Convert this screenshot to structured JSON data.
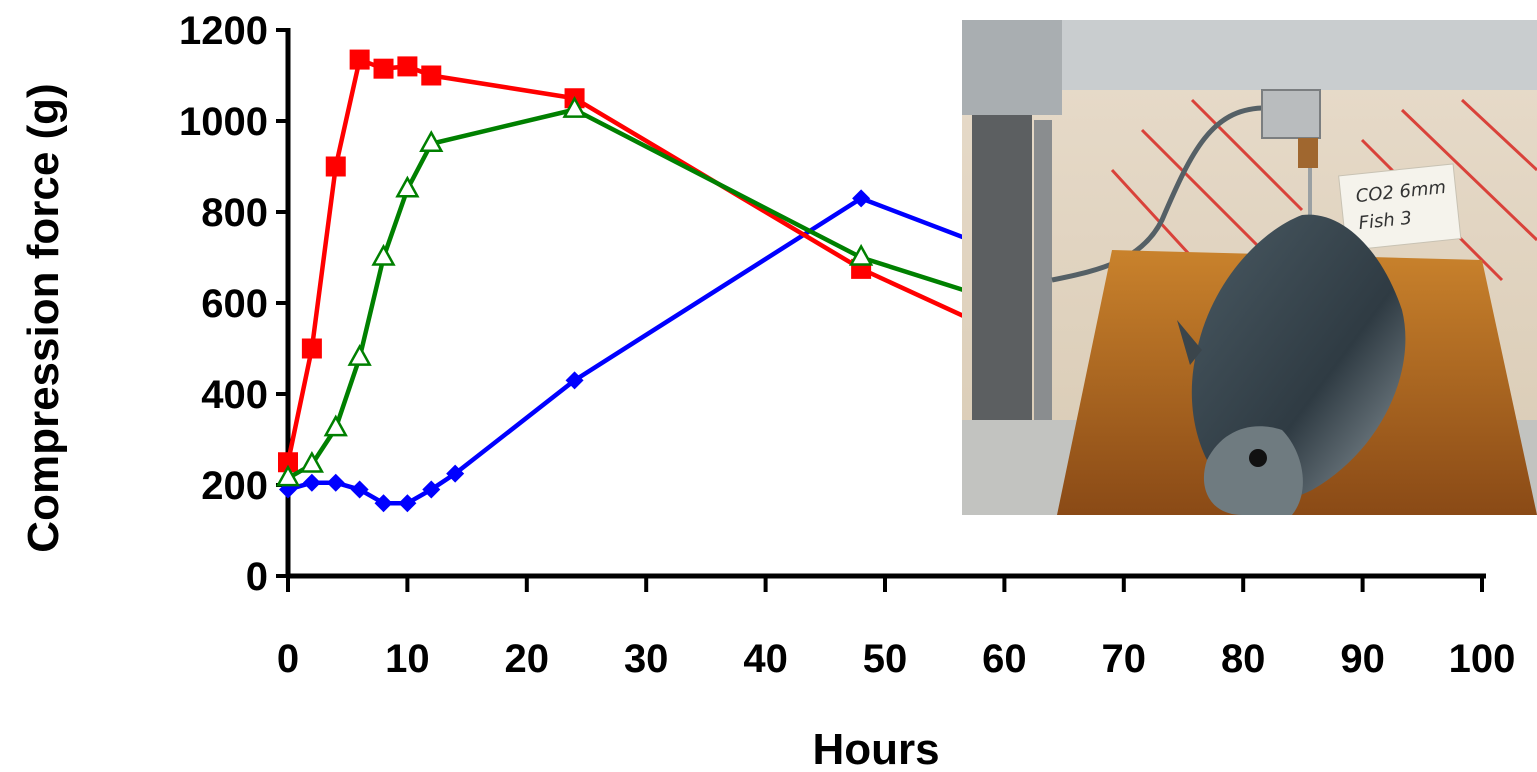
{
  "chart_data": {
    "type": "line",
    "title": "",
    "xlabel": "Hours",
    "ylabel": "Compression force (g)",
    "xlim": [
      0,
      100
    ],
    "ylim": [
      0,
      1200
    ],
    "xticks": [
      0,
      10,
      20,
      30,
      40,
      50,
      60,
      70,
      80,
      90,
      100
    ],
    "yticks": [
      0,
      200,
      400,
      600,
      800,
      1000,
      1200
    ],
    "grid": false,
    "legend": "none",
    "series": [
      {
        "color": "#0000ff",
        "marker": "diamond",
        "x": [
          0,
          2,
          4,
          6,
          8,
          10,
          12,
          14,
          24,
          48,
          60
        ],
        "y": [
          190,
          205,
          205,
          190,
          160,
          160,
          190,
          225,
          430,
          830,
          710
        ]
      },
      {
        "color": "#ff0000",
        "marker": "square",
        "x": [
          0,
          2,
          4,
          6,
          8,
          10,
          12,
          24,
          48,
          60
        ],
        "y": [
          250,
          500,
          900,
          1135,
          1115,
          1120,
          1100,
          1050,
          675,
          530
        ]
      },
      {
        "color": "#008000",
        "marker": "triangle-open",
        "x": [
          0,
          2,
          4,
          6,
          8,
          10,
          12,
          24,
          48,
          60
        ],
        "y": [
          215,
          245,
          325,
          480,
          700,
          850,
          950,
          1025,
          700,
          600
        ]
      }
    ]
  },
  "photo": {
    "label_lines": [
      "CO2 6mm",
      "Fish 3"
    ]
  }
}
